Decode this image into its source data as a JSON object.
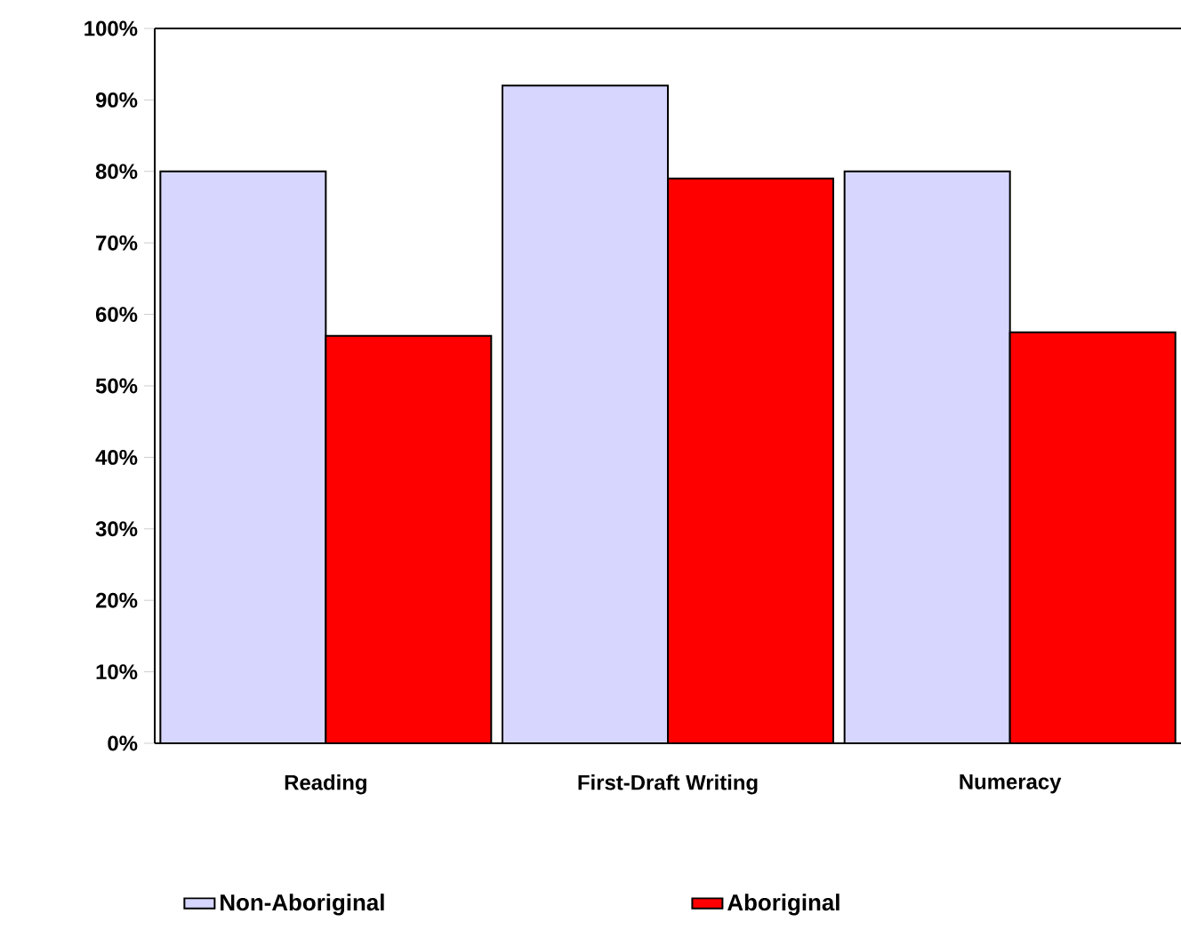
{
  "chart_data": {
    "type": "bar",
    "categories": [
      "Reading",
      "First-Draft Writing",
      "Numeracy"
    ],
    "series": [
      {
        "name": "Non-Aboriginal",
        "color": "#d6d6ff",
        "values": [
          80,
          92,
          80
        ]
      },
      {
        "name": "Aboriginal",
        "color": "#ff0000",
        "values": [
          57,
          79,
          57.5
        ]
      }
    ],
    "ylim": [
      0,
      100
    ],
    "yticks": [
      {
        "value": 0,
        "label": "0%"
      },
      {
        "value": 10,
        "label": "10%"
      },
      {
        "value": 20,
        "label": "20%"
      },
      {
        "value": 30,
        "label": "30%"
      },
      {
        "value": 40,
        "label": "40%"
      },
      {
        "value": 50,
        "label": "50%"
      },
      {
        "value": 60,
        "label": "60%"
      },
      {
        "value": 70,
        "label": "70%"
      },
      {
        "value": 80,
        "label": "80%"
      },
      {
        "value": 90,
        "label": "90%"
      },
      {
        "value": 100,
        "label": "100%"
      }
    ],
    "legend": "bottom"
  }
}
